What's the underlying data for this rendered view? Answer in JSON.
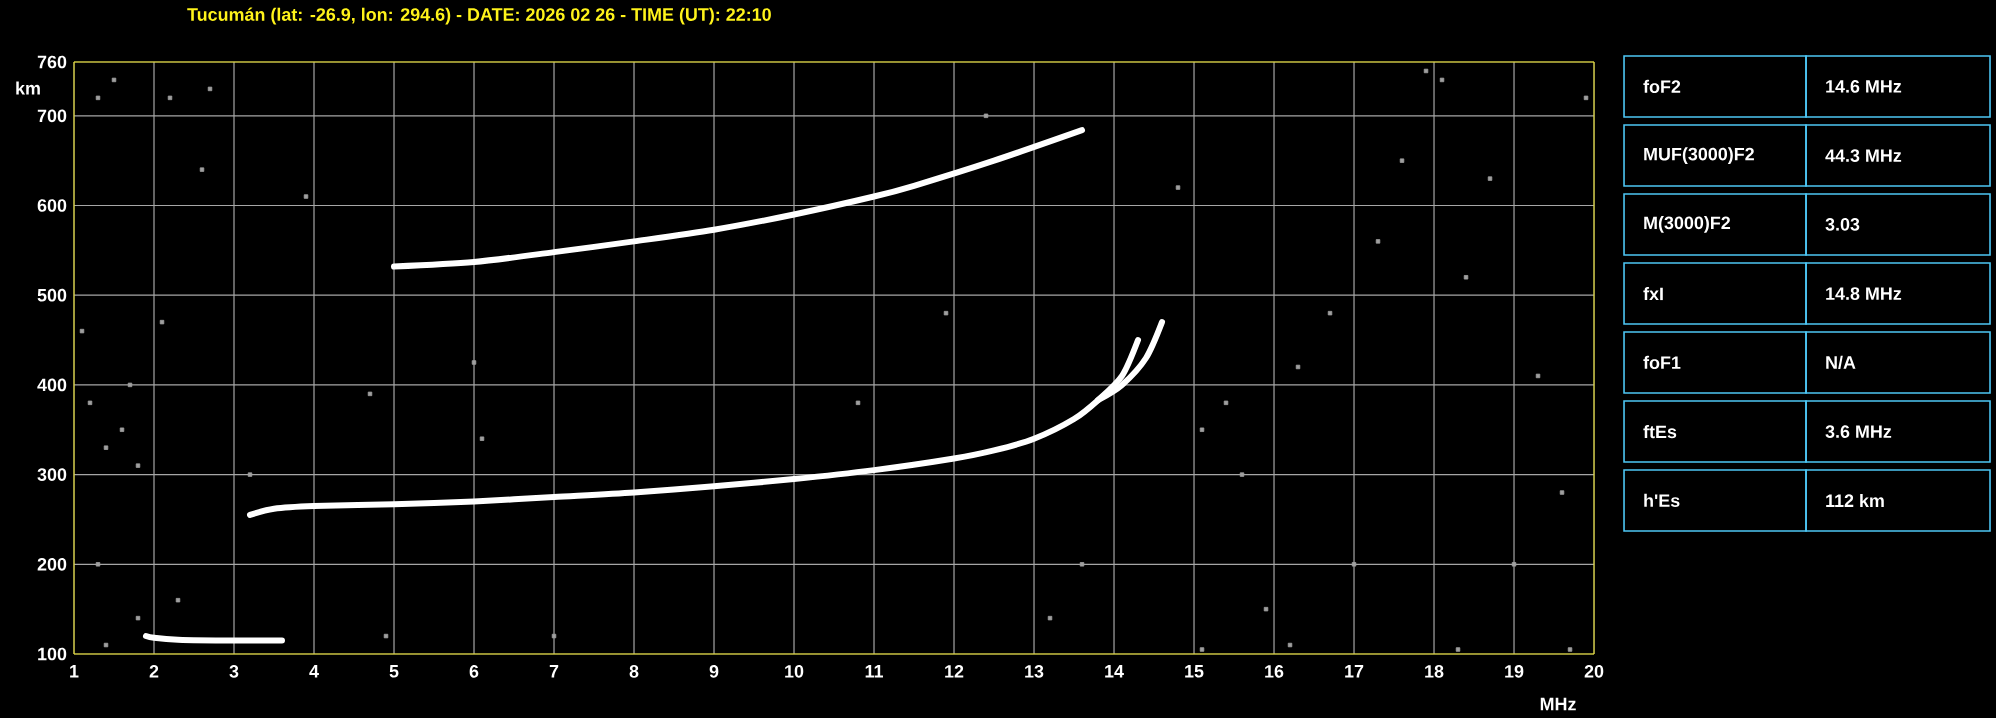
{
  "chart_data": [
    {
      "type": "line",
      "title": "Tucumán (lat: -26.9, lon: 294.6) - DATE: 2026 02 26 - TIME (UT): 22:10",
      "xlabel": "MHz",
      "ylabel": "km",
      "xlim": [
        1,
        20
      ],
      "xticks": [
        1,
        2,
        3,
        4,
        5,
        6,
        7,
        8,
        9,
        10,
        11,
        12,
        13,
        14,
        15,
        16,
        17,
        18,
        19,
        20
      ],
      "ylim": [
        100,
        760
      ],
      "yticks": [
        100,
        200,
        300,
        400,
        500,
        600,
        700,
        760
      ],
      "grid": true,
      "series": [
        {
          "type": "line",
          "marker": "none",
          "color": "#ffffff",
          "x": [
            1.9,
            2.0,
            2.3,
            3.0,
            3.6
          ],
          "values": [
            120,
            118,
            116,
            115,
            115
          ]
        },
        {
          "type": "line",
          "marker": "none",
          "color": "#ffffff",
          "x": [
            3.2,
            3.5,
            4,
            5,
            6,
            7,
            8,
            9,
            10,
            11,
            12,
            12.5,
            13,
            13.5,
            13.8,
            14.1,
            14.3
          ],
          "values": [
            255,
            262,
            265,
            267,
            270,
            275,
            280,
            287,
            295,
            305,
            318,
            327,
            340,
            362,
            383,
            410,
            450
          ]
        },
        {
          "type": "line",
          "marker": "none",
          "color": "#ffffff",
          "x": [
            13.8,
            14.1,
            14.4,
            14.6
          ],
          "values": [
            383,
            400,
            430,
            470
          ]
        },
        {
          "type": "line",
          "marker": "none",
          "color": "#ffffff",
          "x": [
            5,
            6,
            7,
            8,
            9,
            10,
            11,
            11.5,
            12.5,
            13.6
          ],
          "values": [
            532,
            537,
            548,
            560,
            573,
            590,
            610,
            622,
            650,
            684
          ]
        },
        {
          "type": "scatter",
          "marker": "square",
          "color": "#a0a0a0",
          "x": [
            1.3,
            1.5,
            2.2,
            2.7,
            1.1,
            1.2,
            1.4,
            1.6,
            1.8,
            2.1,
            1.7,
            1.3,
            1.8,
            2.3,
            1.4,
            3.2,
            4.7,
            4.9,
            6.0,
            7.0,
            2.6,
            3.9,
            6.1,
            14.8,
            15.1,
            15.4,
            15.6,
            15.9,
            16.3,
            16.7,
            17.0,
            17.3,
            17.6,
            17.9,
            18.1,
            18.4,
            18.7,
            19.0,
            19.3,
            19.6,
            19.9,
            16.2,
            15.1,
            18.3,
            19.7,
            13.6,
            13.2,
            12.4,
            11.9,
            10.8
          ],
          "values": [
            720,
            740,
            720,
            730,
            460,
            380,
            330,
            350,
            310,
            470,
            400,
            200,
            140,
            160,
            110,
            300,
            390,
            120,
            425,
            120,
            640,
            610,
            340,
            620,
            350,
            380,
            300,
            150,
            420,
            480,
            200,
            560,
            650,
            750,
            740,
            520,
            630,
            200,
            410,
            280,
            720,
            110,
            105,
            105,
            105,
            200,
            140,
            700,
            480,
            380
          ]
        }
      ]
    },
    {
      "type": "other",
      "annotations": [
        "foF2",
        "14.6 MHz",
        "MUF(3000)F2",
        "44.3 MHz",
        "M(3000)F2",
        "3.03",
        "fxI",
        "14.8 MHz",
        "foF1",
        "N/A",
        "ftEs",
        "3.6 MHz",
        "h'Es",
        "112 km"
      ]
    }
  ]
}
